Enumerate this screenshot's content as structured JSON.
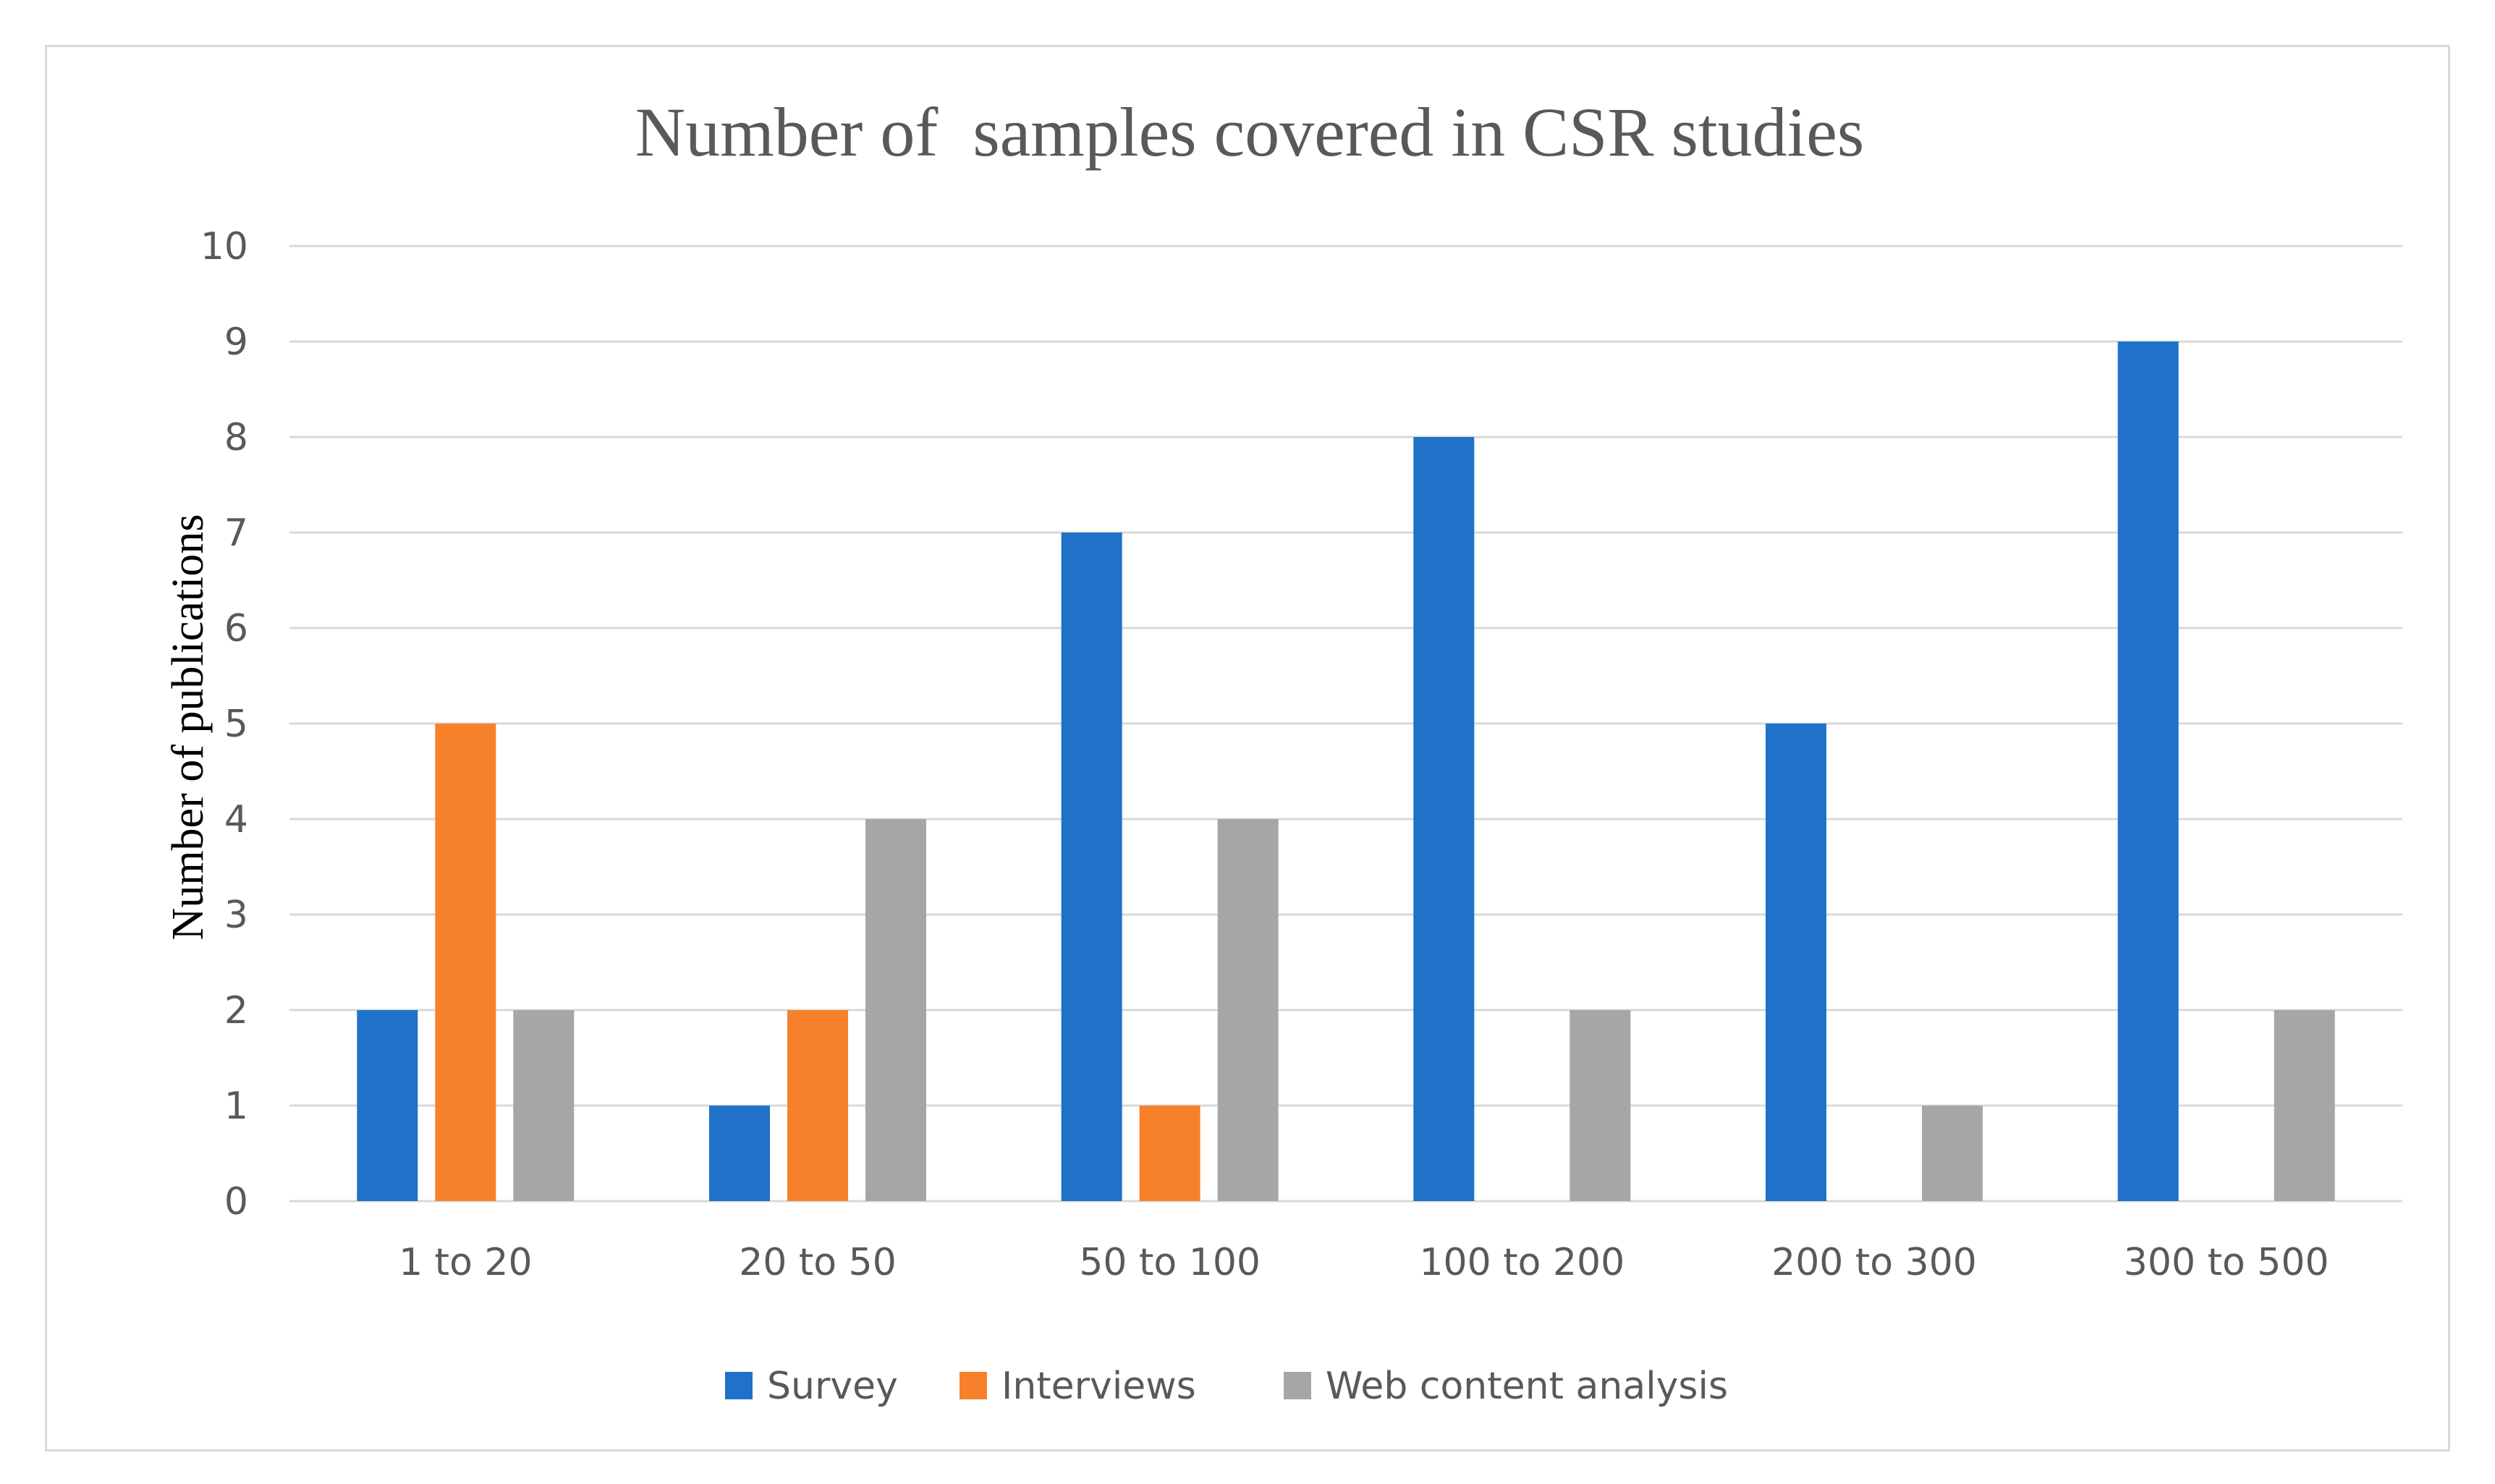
{
  "chart_data": {
    "type": "bar",
    "title": "Number of  samples covered in CSR studies",
    "xlabel": "",
    "ylabel": "Number of publications",
    "ylim": [
      0,
      10
    ],
    "yticks": [
      "0",
      "1",
      "2",
      "3",
      "4",
      "5",
      "6",
      "7",
      "8",
      "9",
      "10"
    ],
    "grid": true,
    "legend_position": "bottom",
    "categories": [
      "1 to 20",
      "20 to 50",
      "50 to 100",
      "100 to 200",
      "200 to 300",
      "300 to 500"
    ],
    "series": [
      {
        "name": "Survey",
        "color": "#1f72c7",
        "values": [
          2,
          1,
          7,
          8,
          5,
          9
        ]
      },
      {
        "name": "Interviews",
        "color": "#f7812b",
        "values": [
          5,
          2,
          1,
          0,
          0,
          0
        ]
      },
      {
        "name": "Web content analysis",
        "color": "#a6a6a6",
        "values": [
          2,
          4,
          4,
          2,
          1,
          2
        ]
      }
    ]
  }
}
